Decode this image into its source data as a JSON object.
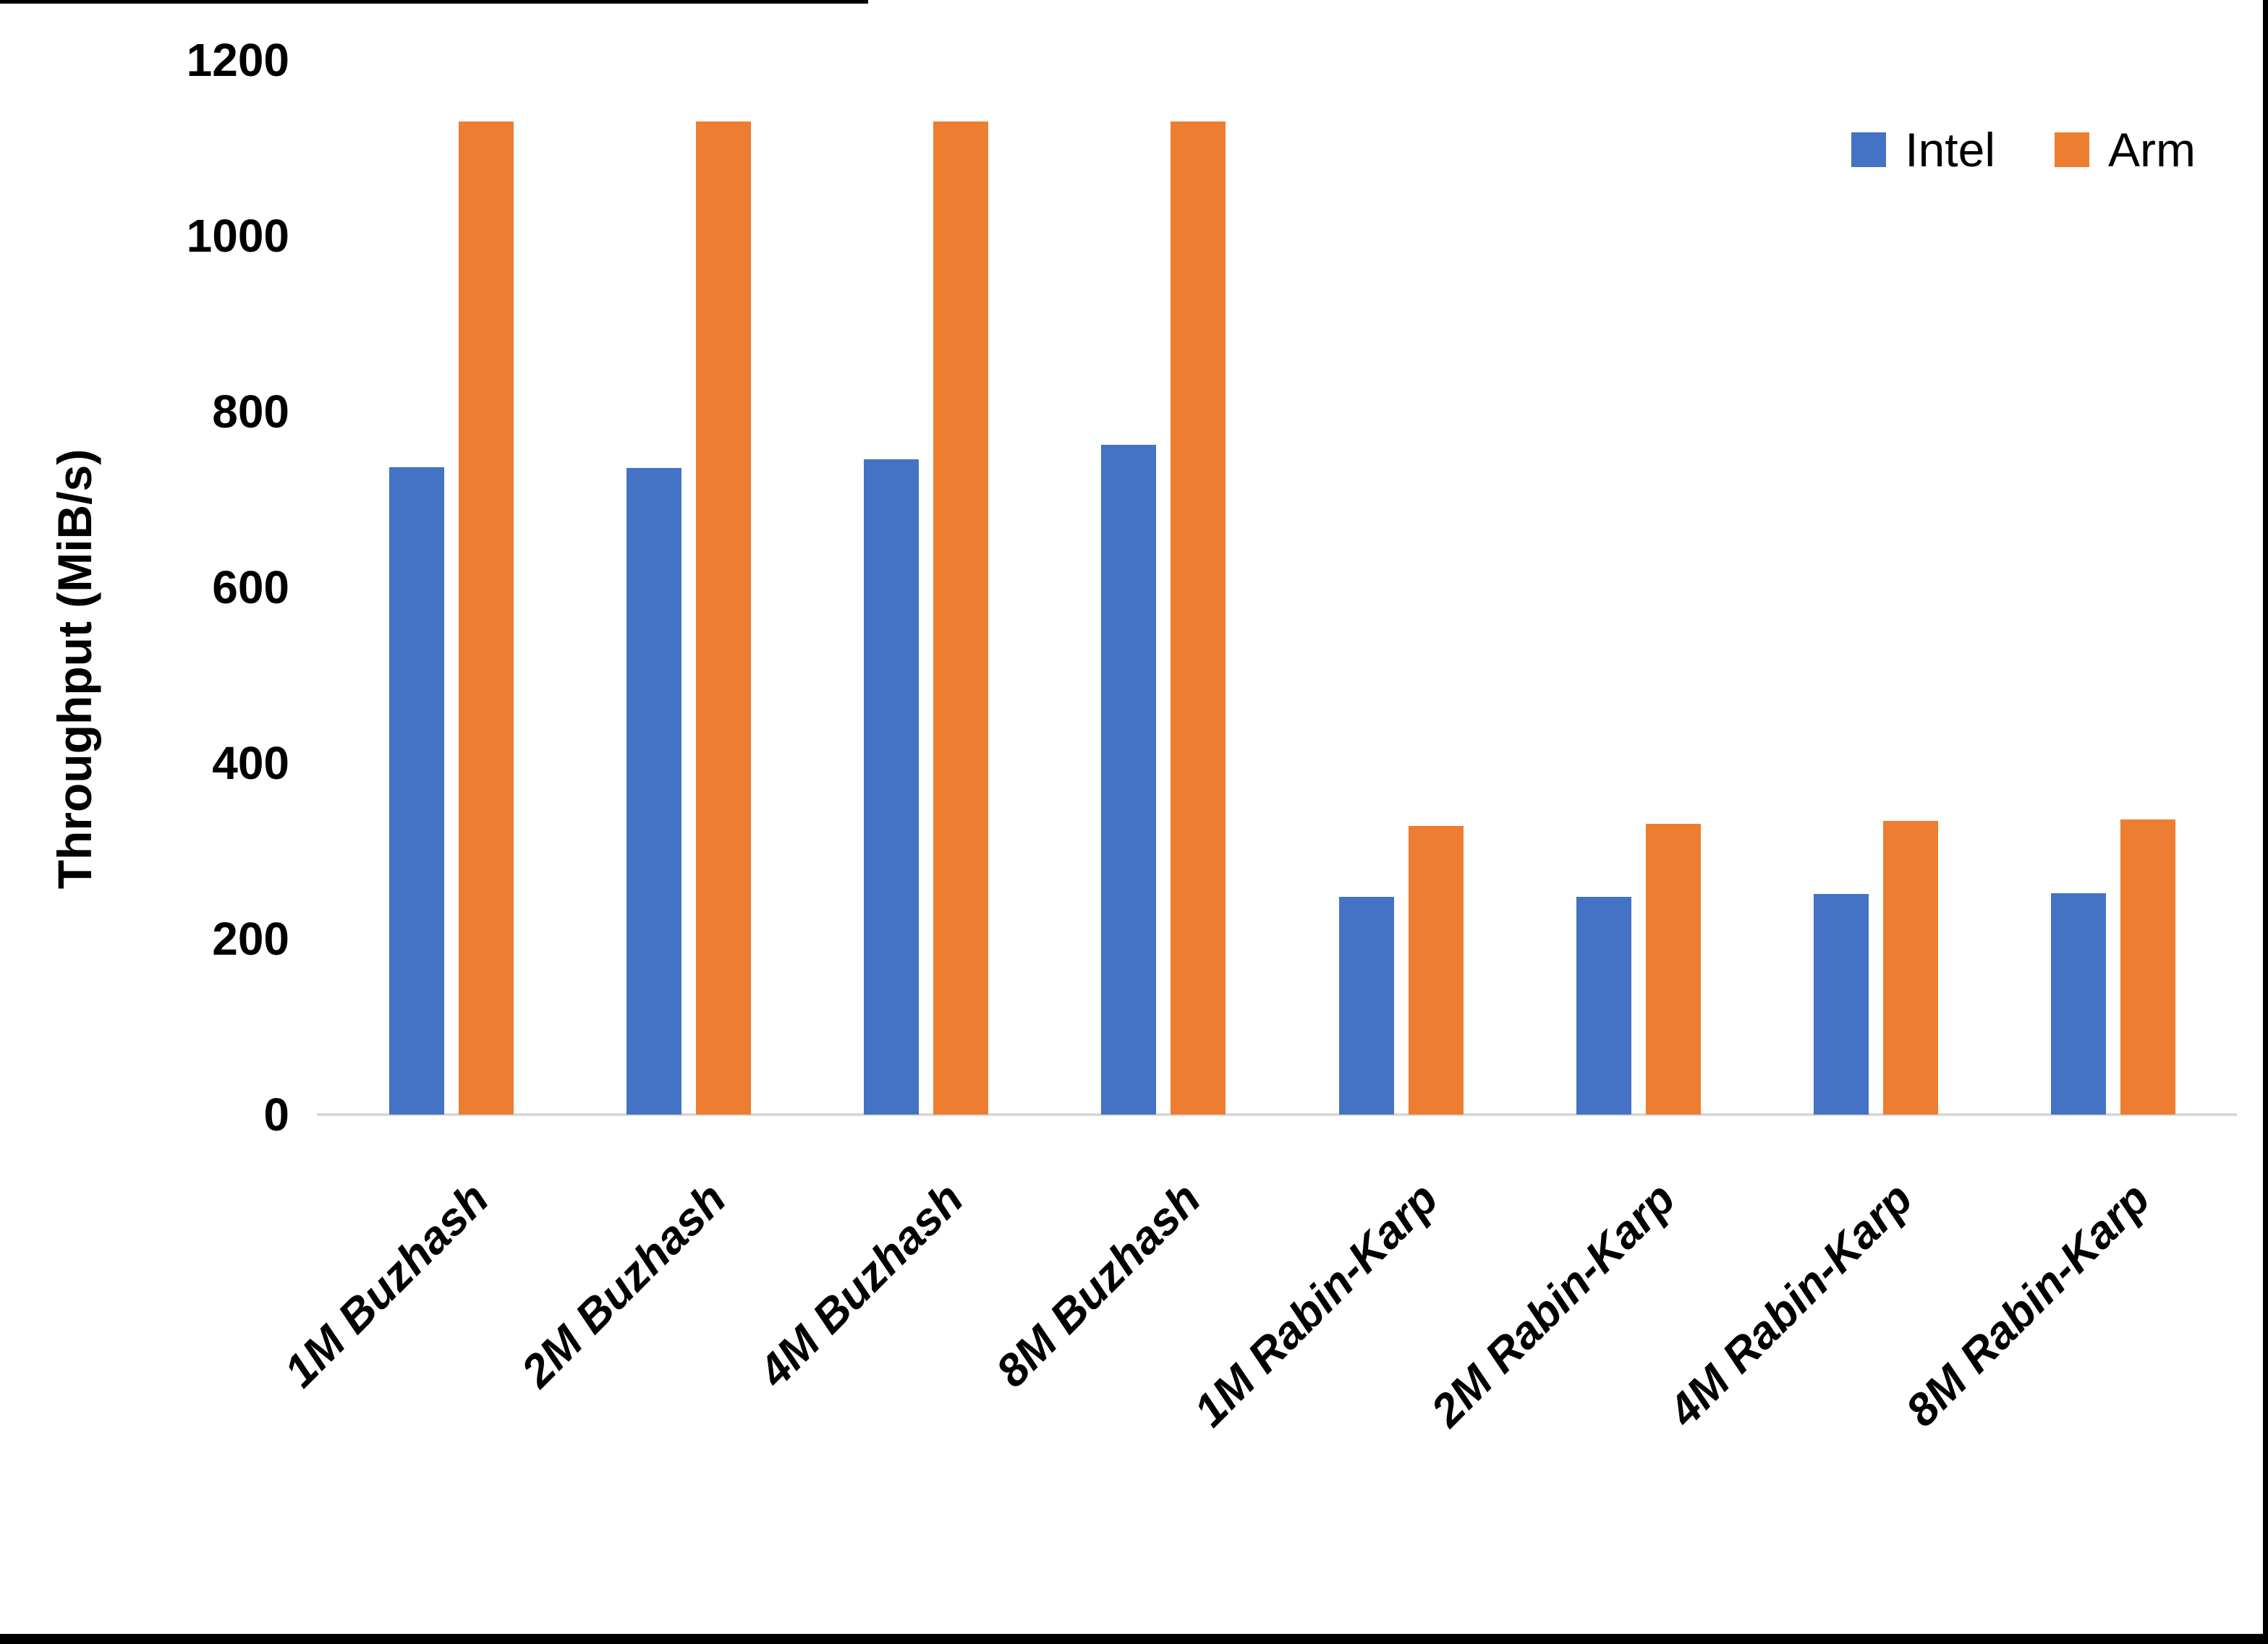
{
  "chart_data": {
    "type": "bar",
    "title": "",
    "categories": [
      "1M Buzhash",
      "2M Buzhash",
      "4M Buzhash",
      "8M Buzhash",
      "1M Rabin-Karp",
      "2M Rabin-Karp",
      "4M Rabin-Karp",
      "8M Rabin-Karp"
    ],
    "series": [
      {
        "name": "Intel",
        "color": "#4472C4",
        "values": [
          737,
          736,
          746,
          762,
          248,
          248,
          251,
          252
        ]
      },
      {
        "name": "Arm",
        "color": "#ED7D31",
        "values": [
          1130,
          1130,
          1130,
          1130,
          328,
          331,
          334,
          336
        ]
      }
    ],
    "xlabel": "",
    "ylabel": "Throughput (MiB/s)",
    "ylim": [
      0,
      1200
    ],
    "ytick_interval": 200,
    "ytick_labels": [
      "0",
      "200",
      "400",
      "600",
      "800",
      "1000",
      "1200"
    ],
    "grid": false,
    "legend_position": "top-right",
    "axis_line_color": "#D9D9D9",
    "text_color": "#000000"
  }
}
